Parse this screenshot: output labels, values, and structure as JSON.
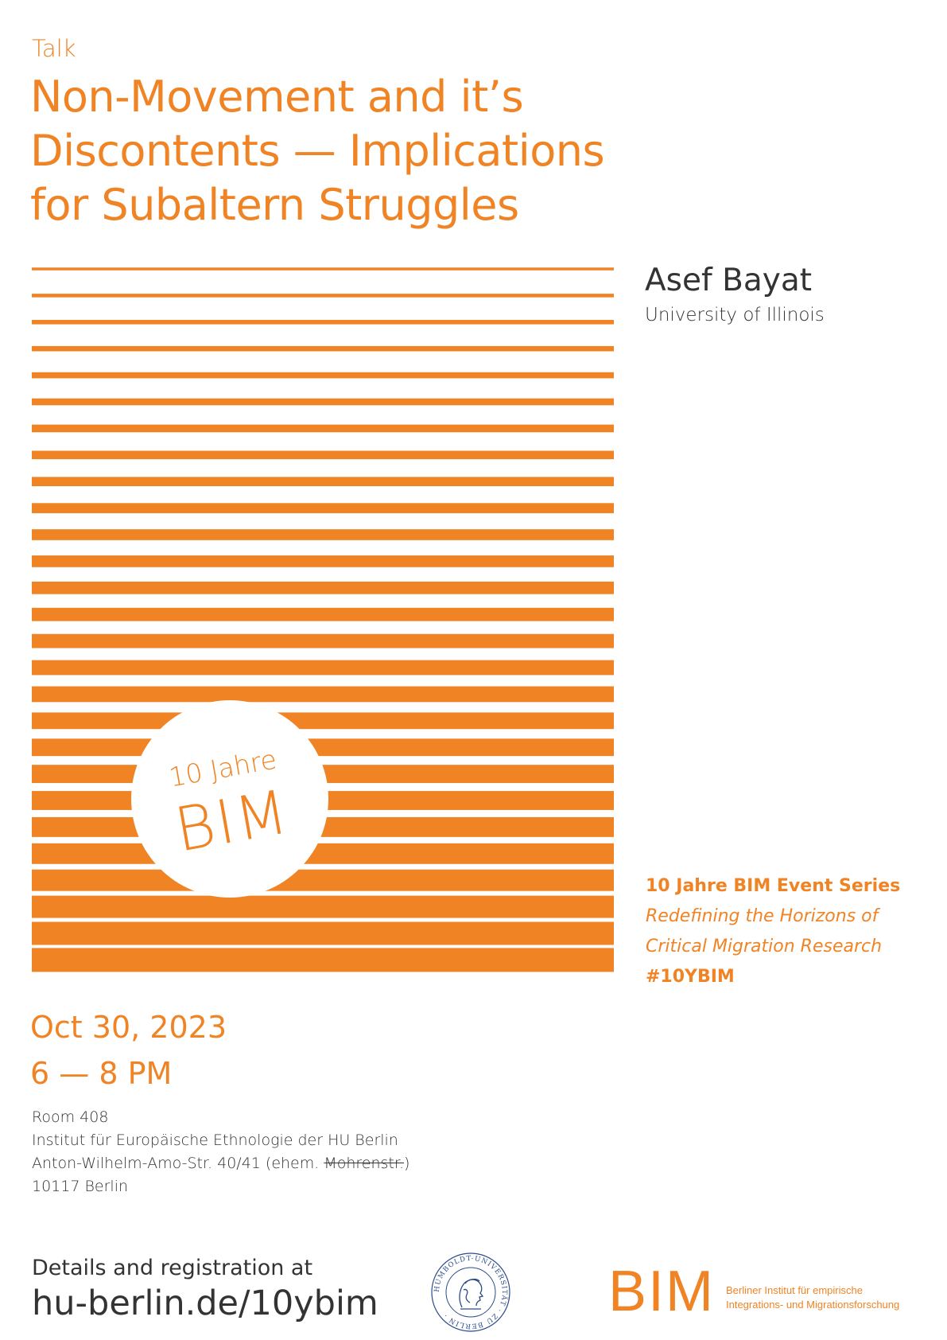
{
  "colors": {
    "accent": "#f08425",
    "text_dark": "#333333",
    "seal_blue": "#2a4a8a"
  },
  "kicker": "Talk",
  "title": {
    "line1": "Non-Movement and it’s",
    "line2": "Discontents — Implications",
    "line3": "for Subaltern Struggles"
  },
  "speaker": {
    "name": "Asef Bayat",
    "affiliation": "University of Illinois"
  },
  "anniversary_badge": {
    "top": "10 Jahre",
    "bottom": "BIM"
  },
  "series": {
    "name": "10 Jahre BIM Event Series",
    "subtitle_line1": "Redefining the Horizons of",
    "subtitle_line2": "Critical Migration Research",
    "hashtag": "#10YBIM"
  },
  "event": {
    "date": "Oct 30, 2023",
    "time": "6 — 8 PM"
  },
  "venue": {
    "room": "Room 408",
    "institute": "Institut für Europäische Ethnologie der HU Berlin",
    "street_prefix": "Anton-Wilhelm-Amo-Str. 40/41 (ehem. ",
    "street_old": "Mohrenstr.",
    "street_suffix": ")",
    "city": "10117 Berlin"
  },
  "details": {
    "label": "Details and registration at",
    "url": "hu-berlin.de/10ybim"
  },
  "hu_seal": {
    "ring_text": "HUMBOLDT-UNIVERSITÄT · ZU BERLIN ·"
  },
  "bim_logo": {
    "letters": "BIM",
    "name_line1": "Berliner Institut für empirische",
    "name_line2": "Integrations- und Migrationsforschung"
  }
}
